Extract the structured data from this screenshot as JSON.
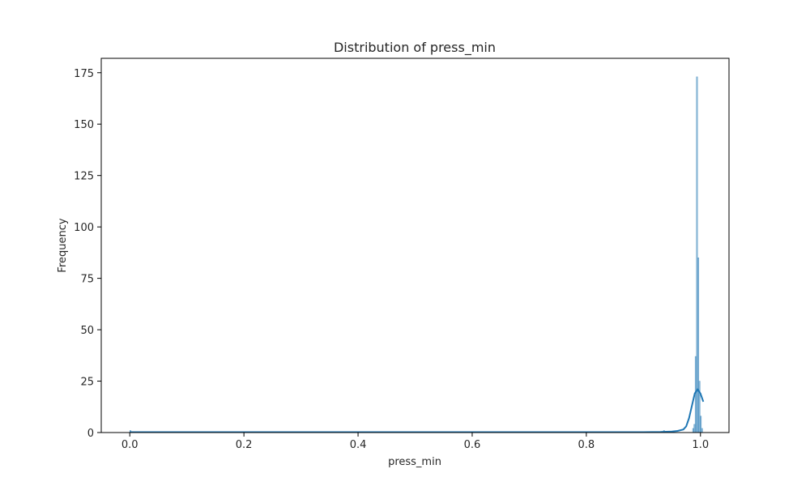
{
  "chart_data": {
    "type": "bar",
    "subtype": "histogram-with-kde",
    "title": "Distribution of press_min",
    "xlabel": "press_min",
    "ylabel": "Frequency",
    "xlim": [
      -0.05,
      1.05
    ],
    "ylim": [
      0,
      182
    ],
    "xticks": [
      0.0,
      0.2,
      0.4,
      0.6,
      0.8,
      1.0
    ],
    "xtick_labels": [
      "0.0",
      "0.2",
      "0.4",
      "0.6",
      "0.8",
      "1.0"
    ],
    "yticks": [
      0,
      25,
      50,
      75,
      100,
      125,
      150,
      175
    ],
    "ytick_labels": [
      "0",
      "25",
      "50",
      "75",
      "100",
      "125",
      "150",
      "175"
    ],
    "grid": false,
    "bar_color": "#1f77b4",
    "bar_opacity": 0.5,
    "line_color": "#1f77b4",
    "bins": [
      {
        "x0": 0.0,
        "x1": 0.0022,
        "count": 1
      },
      {
        "x0": 0.935,
        "x1": 0.9372,
        "count": 1
      },
      {
        "x0": 0.9862,
        "x1": 0.9884,
        "count": 2
      },
      {
        "x0": 0.9884,
        "x1": 0.9906,
        "count": 4
      },
      {
        "x0": 0.9906,
        "x1": 0.9928,
        "count": 37
      },
      {
        "x0": 0.9928,
        "x1": 0.995,
        "count": 173
      },
      {
        "x0": 0.995,
        "x1": 0.9972,
        "count": 85
      },
      {
        "x0": 0.9972,
        "x1": 0.9994,
        "count": 25
      },
      {
        "x0": 0.9994,
        "x1": 1.0016,
        "count": 8
      },
      {
        "x0": 1.0016,
        "x1": 1.0038,
        "count": 2
      }
    ],
    "kde": {
      "x": [
        0.0,
        0.1,
        0.2,
        0.3,
        0.4,
        0.5,
        0.6,
        0.7,
        0.8,
        0.9,
        0.93,
        0.95,
        0.96,
        0.97,
        0.975,
        0.98,
        0.985,
        0.99,
        0.995,
        1.0,
        1.005
      ],
      "y": [
        0.2,
        0.2,
        0.2,
        0.2,
        0.2,
        0.2,
        0.2,
        0.2,
        0.2,
        0.2,
        0.3,
        0.5,
        0.8,
        1.5,
        3,
        7,
        13,
        19,
        21,
        19,
        15
      ]
    }
  }
}
